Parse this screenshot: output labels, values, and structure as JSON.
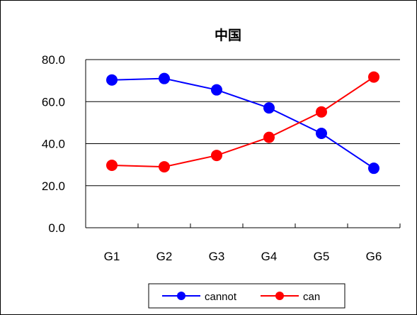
{
  "chart_data": {
    "type": "line",
    "title": "中国",
    "xlabel": "",
    "ylabel": "",
    "categories": [
      "G1",
      "G2",
      "G3",
      "G4",
      "G5",
      "G6"
    ],
    "ylim": [
      0,
      80
    ],
    "yticks": [
      "0.0",
      "20.0",
      "40.0",
      "60.0",
      "80.0"
    ],
    "grid": true,
    "legend_position": "bottom",
    "series": [
      {
        "name": "cannot",
        "color": "#0000ff",
        "values": [
          70.3,
          71.0,
          65.6,
          57.0,
          44.9,
          28.3
        ]
      },
      {
        "name": "can",
        "color": "#ff0000",
        "values": [
          29.7,
          29.0,
          34.4,
          43.0,
          55.1,
          71.7
        ]
      }
    ]
  }
}
